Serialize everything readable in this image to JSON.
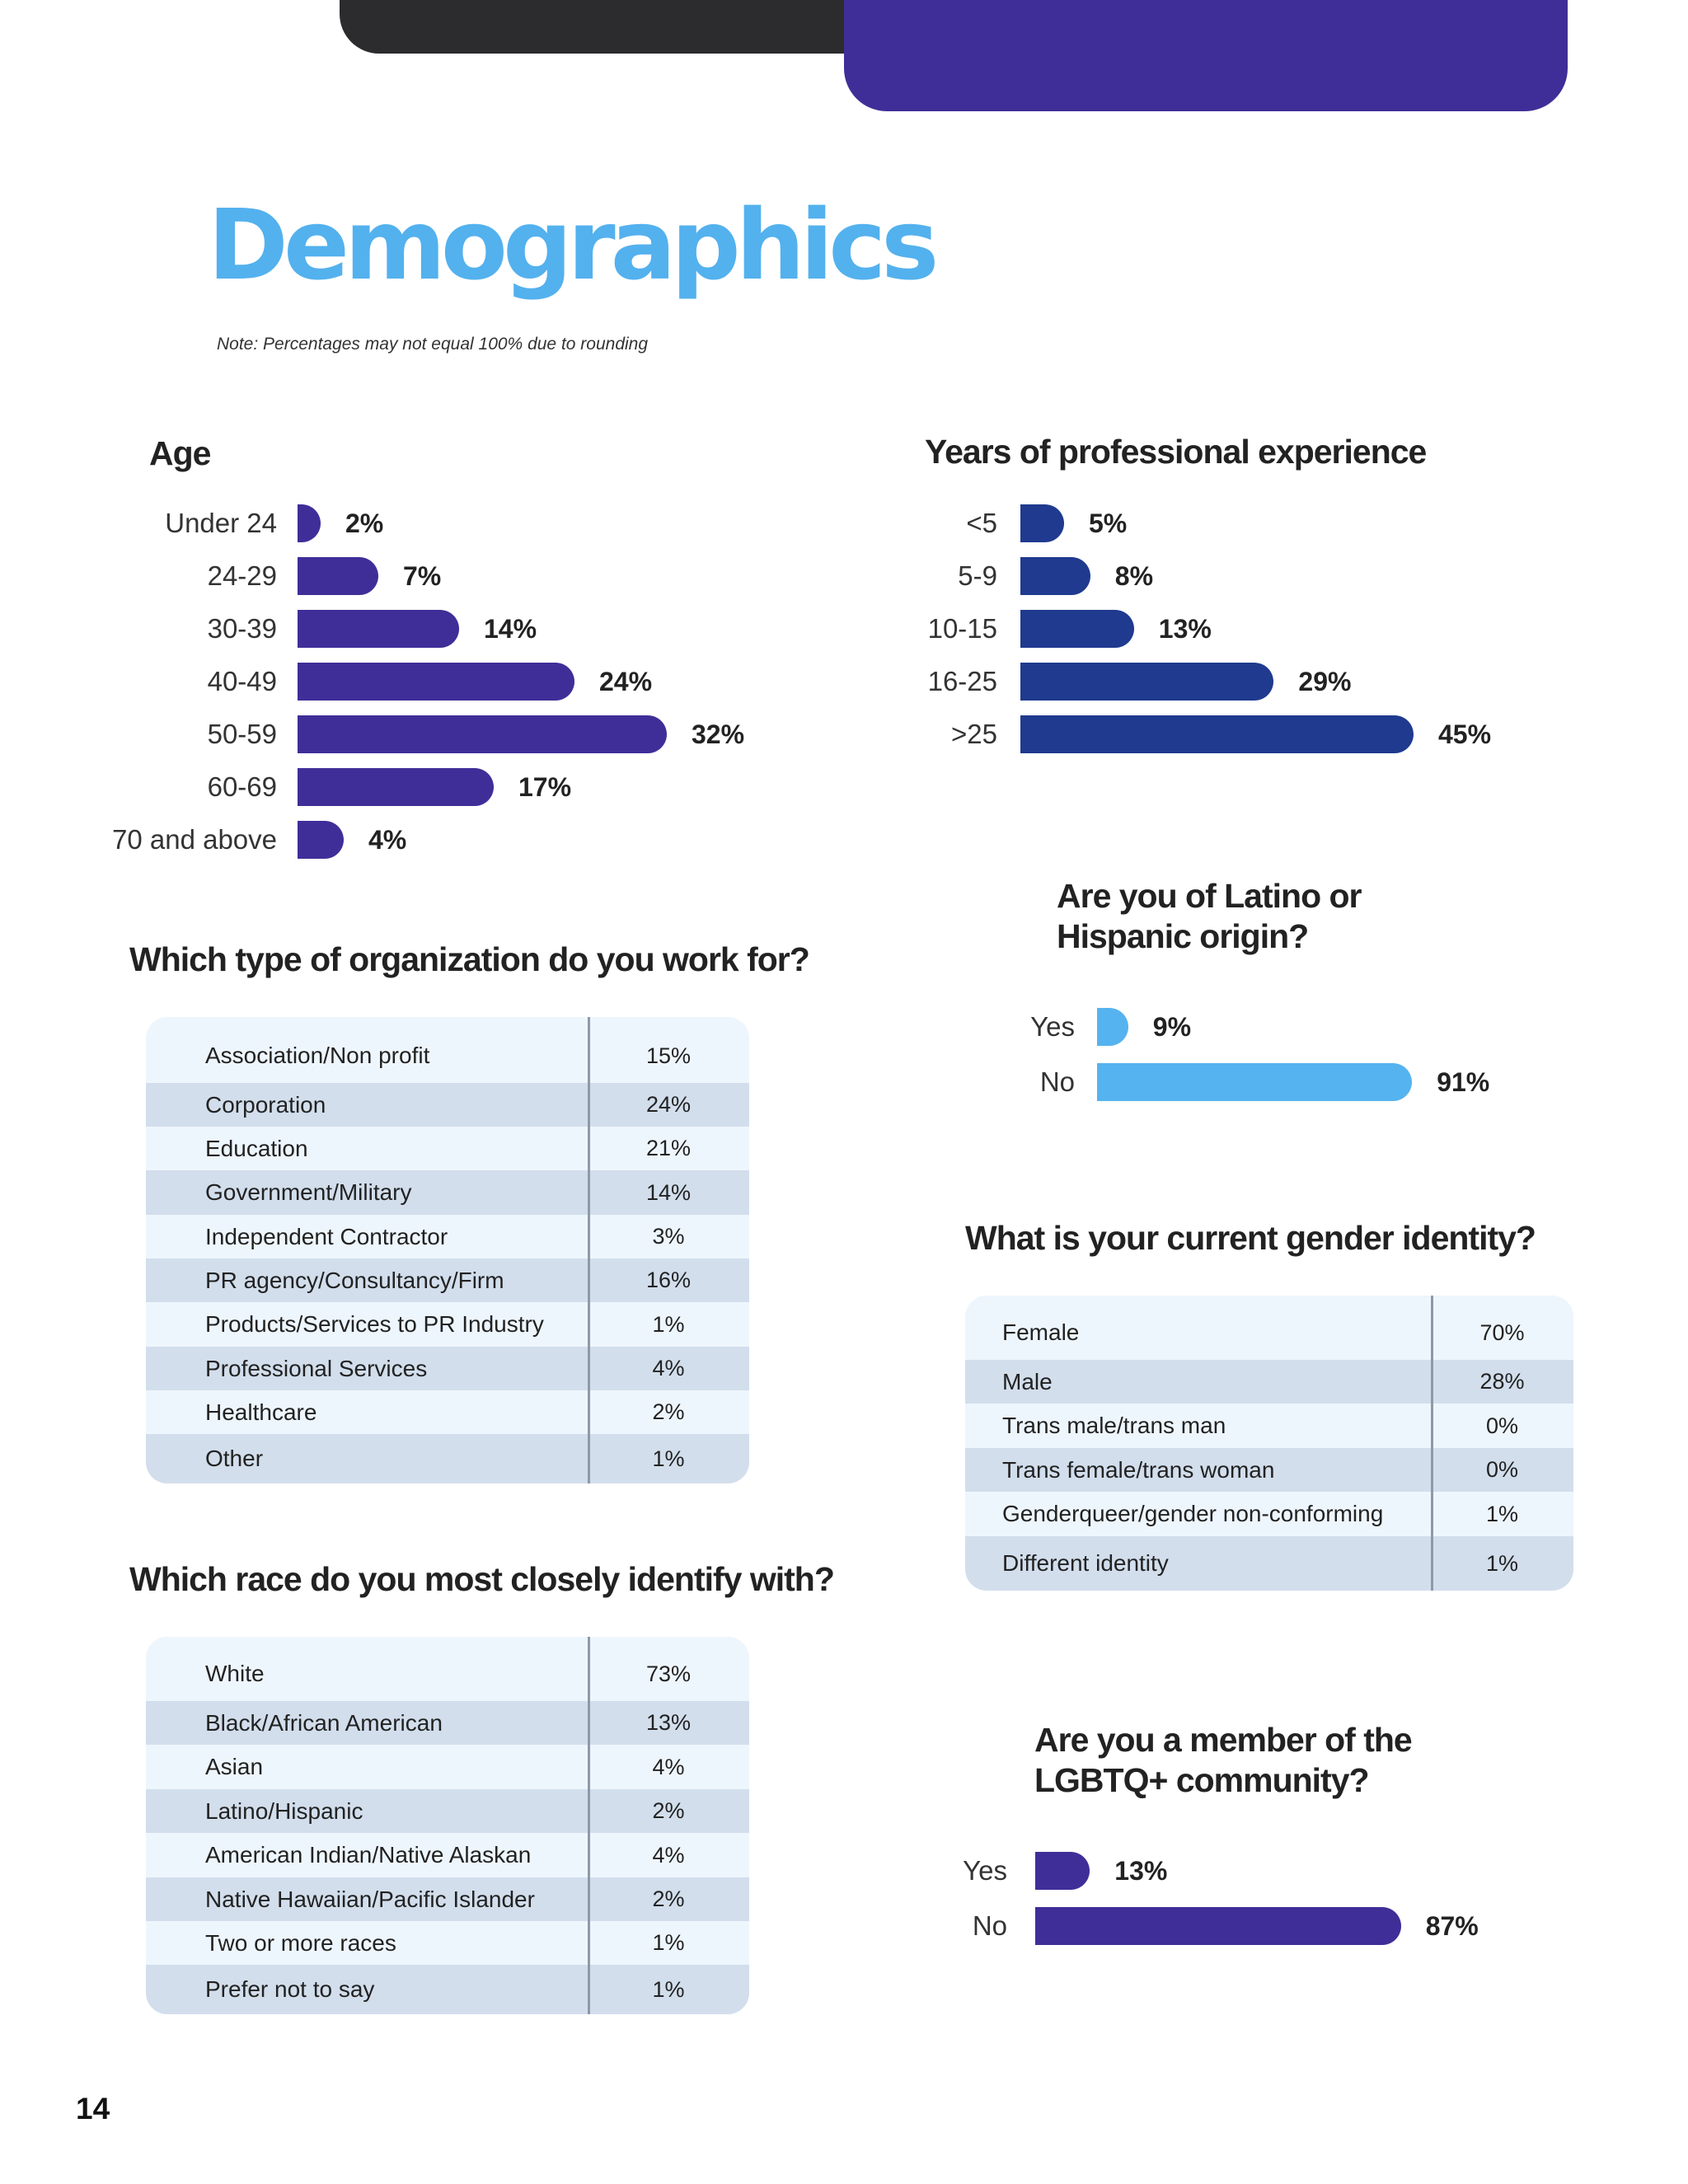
{
  "colors": {
    "title_blue": "#53b1ee",
    "purple": "#3f2e98",
    "navy": "#1f3a8f",
    "light_blue": "#55b3ef",
    "header_dark": "#2c2c2e",
    "row_light": "#eef6fd",
    "row_dark": "#d2deec"
  },
  "page": {
    "title": "Demographics",
    "note": "Note: Percentages may not equal 100% due to rounding",
    "page_number": "14"
  },
  "age": {
    "title": "Age",
    "rows": [
      {
        "label": "Under 24",
        "value": "2%"
      },
      {
        "label": "24-29",
        "value": "7%"
      },
      {
        "label": "30-39",
        "value": "14%"
      },
      {
        "label": "40-49",
        "value": "24%"
      },
      {
        "label": "50-59",
        "value": "32%"
      },
      {
        "label": "60-69",
        "value": "17%"
      },
      {
        "label": "70 and above",
        "value": "4%"
      }
    ]
  },
  "experience": {
    "title": "Years of professional experience",
    "rows": [
      {
        "label": "<5",
        "value": "5%"
      },
      {
        "label": "5-9",
        "value": "8%"
      },
      {
        "label": "10-15",
        "value": "13%"
      },
      {
        "label": "16-25",
        "value": "29%"
      },
      {
        "label": ">25",
        "value": "45%"
      }
    ]
  },
  "latino": {
    "title_line1": "Are you of Latino or",
    "title_line2": "Hispanic origin?",
    "rows": [
      {
        "label": "Yes",
        "value": "9%"
      },
      {
        "label": "No",
        "value": "91%"
      }
    ]
  },
  "organization": {
    "title": "Which type of organization do you work for?",
    "rows": [
      {
        "label": "Association/Non profit",
        "value": "15%"
      },
      {
        "label": "Corporation",
        "value": "24%"
      },
      {
        "label": "Education",
        "value": "21%"
      },
      {
        "label": "Government/Military",
        "value": "14%"
      },
      {
        "label": "Independent Contractor",
        "value": "3%"
      },
      {
        "label": "PR agency/Consultancy/Firm",
        "value": "16%"
      },
      {
        "label": "Products/Services to PR Industry",
        "value": "1%"
      },
      {
        "label": "Professional Services",
        "value": "4%"
      },
      {
        "label": "Healthcare",
        "value": "2%"
      },
      {
        "label": "Other",
        "value": "1%"
      }
    ]
  },
  "gender": {
    "title": "What is your current gender identity?",
    "rows": [
      {
        "label": "Female",
        "value": "70%"
      },
      {
        "label": "Male",
        "value": "28%"
      },
      {
        "label": "Trans male/trans man",
        "value": "0%"
      },
      {
        "label": "Trans female/trans woman",
        "value": "0%"
      },
      {
        "label": "Genderqueer/gender non-conforming",
        "value": "1%"
      },
      {
        "label": "Different identity",
        "value": "1%"
      }
    ]
  },
  "race": {
    "title": "Which race do you most closely identify with?",
    "rows": [
      {
        "label": "White",
        "value": "73%"
      },
      {
        "label": "Black/African American",
        "value": "13%"
      },
      {
        "label": "Asian",
        "value": "4%"
      },
      {
        "label": "Latino/Hispanic",
        "value": "2%"
      },
      {
        "label": "American Indian/Native Alaskan",
        "value": "4%"
      },
      {
        "label": "Native Hawaiian/Pacific Islander",
        "value": "2%"
      },
      {
        "label": "Two or more races",
        "value": "1%"
      },
      {
        "label": "Prefer not to say",
        "value": "1%"
      }
    ]
  },
  "lgbtq": {
    "title_line1": "Are you a member of the",
    "title_line2": "LGBTQ+ community?",
    "rows": [
      {
        "label": "Yes",
        "value": "13%"
      },
      {
        "label": "No",
        "value": "87%"
      }
    ]
  },
  "chart_data": [
    {
      "type": "bar",
      "title": "Age",
      "categories": [
        "Under 24",
        "24-29",
        "30-39",
        "40-49",
        "50-59",
        "60-69",
        "70 and above"
      ],
      "values": [
        2,
        7,
        14,
        24,
        32,
        17,
        4
      ],
      "unit": "%"
    },
    {
      "type": "bar",
      "title": "Years of professional experience",
      "categories": [
        "<5",
        "5-9",
        "10-15",
        "16-25",
        ">25"
      ],
      "values": [
        5,
        8,
        13,
        29,
        45
      ],
      "unit": "%"
    },
    {
      "type": "bar",
      "title": "Are you of Latino or Hispanic origin?",
      "categories": [
        "Yes",
        "No"
      ],
      "values": [
        9,
        91
      ],
      "unit": "%"
    },
    {
      "type": "bar",
      "title": "Are you a member of the LGBTQ+ community?",
      "categories": [
        "Yes",
        "No"
      ],
      "values": [
        13,
        87
      ],
      "unit": "%"
    }
  ]
}
